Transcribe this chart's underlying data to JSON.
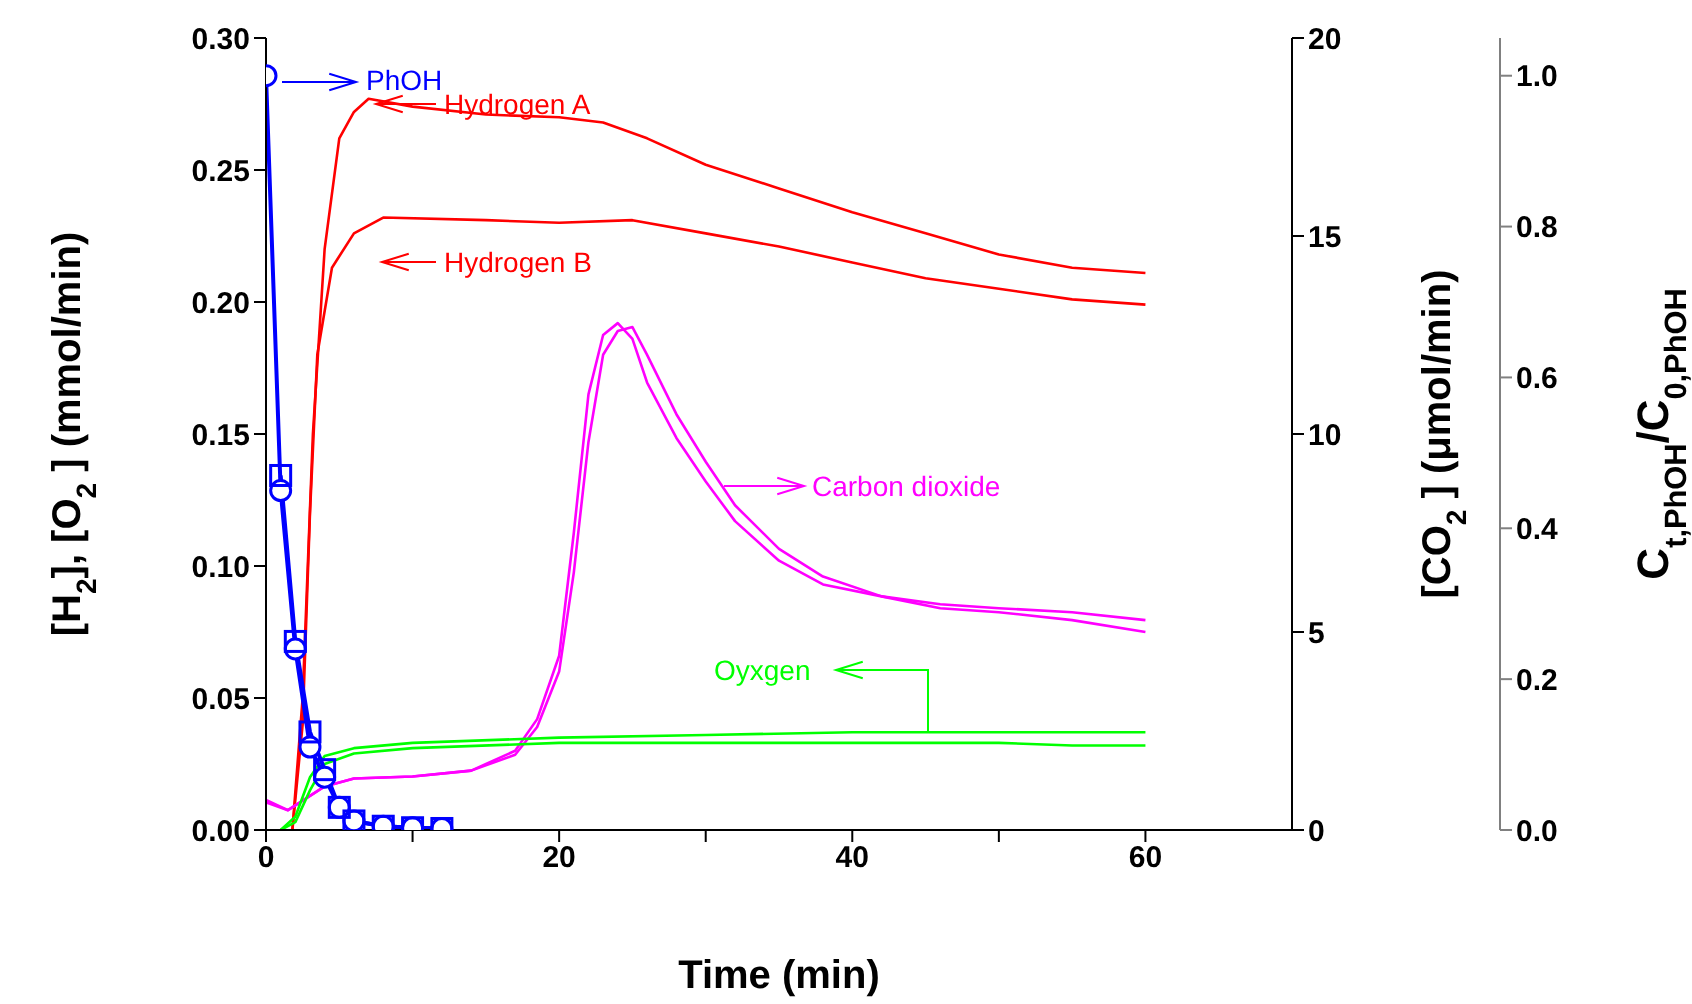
{
  "chart_data": {
    "type": "line",
    "xlabel": "Time (min)",
    "ylabel": "[H$_{2}$], [O$_{2}$ ] (mmol/min)",
    "y2label": "[CO$_{2}$ ] (μmol/min)",
    "y3label": "C$_{t,PhOH}$/C$_{0,PhOH}$",
    "xlim": [
      0,
      70
    ],
    "xticks": [
      0,
      {
        "value": 10,
        "label": null
      },
      20,
      {
        "value": 30,
        "label": null
      },
      40,
      {
        "value": 50,
        "label": null
      },
      60
    ],
    "ylim": [
      0,
      0.3
    ],
    "yticks": [
      {
        "value": 0,
        "label": "0.00"
      },
      {
        "value": 0.05,
        "label": "0.05"
      },
      {
        "value": 0.1,
        "label": "0.10"
      },
      {
        "value": 0.15,
        "label": "0.15"
      },
      {
        "value": 0.2,
        "label": "0.20"
      },
      {
        "value": 0.25,
        "label": "0.25"
      },
      {
        "value": 0.3,
        "label": "0.30"
      }
    ],
    "y2lim": [
      0,
      20
    ],
    "y2ticks": [
      0,
      5,
      10,
      15,
      20
    ],
    "y3lim": [
      0,
      1.05
    ],
    "y3ticks": [
      {
        "value": 0,
        "label": "0.0"
      },
      0.2,
      0.4,
      0.6,
      0.8,
      {
        "value": 1,
        "label": "1.0"
      }
    ],
    "grid": false,
    "legend": "top left",
    "series": [
      {
        "name": "Hydrogen A",
        "color": "#ff0000",
        "marker": "none",
        "x": [
          1.8,
          2.5,
          3.2,
          4,
          5,
          6,
          7,
          10,
          15,
          20,
          23,
          26,
          30,
          35,
          40,
          45,
          50,
          55,
          60
        ],
        "values": [
          0,
          0.05,
          0.15,
          0.22,
          0.262,
          0.272,
          0.277,
          0.274,
          0.271,
          0.27,
          0.268,
          0.262,
          0.252,
          0.243,
          0.234,
          0.226,
          0.218,
          0.213,
          0.211
        ]
      },
      {
        "name": "Hydrogen B",
        "color": "#ff0000",
        "marker": "none",
        "x": [
          1.8,
          2.5,
          3,
          3.5,
          4.5,
          6,
          8,
          15,
          20,
          25,
          30,
          35,
          40,
          45,
          50,
          55,
          60
        ],
        "values": [
          0,
          0.04,
          0.12,
          0.18,
          0.213,
          0.226,
          0.232,
          0.231,
          0.23,
          0.231,
          0.226,
          0.221,
          0.215,
          0.209,
          0.205,
          0.201,
          0.199
        ]
      },
      {
        "name": "Carbon dioxide",
        "color": "#ff00ff",
        "marker": "none",
        "axis": "y2",
        "x": [
          0,
          1.5,
          4,
          6,
          10,
          14,
          17,
          18.5,
          20,
          21,
          22,
          23,
          24,
          25,
          26,
          28,
          30,
          32,
          35,
          38,
          42,
          46,
          50,
          55,
          60
        ],
        "values": [
          0.76,
          0.5,
          1.1,
          1.3,
          1.35,
          1.5,
          2,
          2.8,
          4.4,
          7.5,
          11,
          12.5,
          12.8,
          12.4,
          11.3,
          9.9,
          8.8,
          7.8,
          6.8,
          6.2,
          5.9,
          5.6,
          5.5,
          5.3,
          5
        ]
      },
      {
        "color": "#ff00ff",
        "marker": "none",
        "axis": "y2",
        "x": [
          0,
          1.5,
          4,
          6,
          10,
          14,
          17,
          18.5,
          20,
          21,
          22,
          23,
          24,
          25,
          26,
          28,
          30,
          32,
          35,
          38,
          42,
          46,
          50,
          55,
          60
        ],
        "values": [
          0.7,
          0.5,
          1.1,
          1.3,
          1.35,
          1.5,
          1.9,
          2.6,
          4,
          6.5,
          9.8,
          12,
          12.6,
          12.7,
          12,
          10.5,
          9.3,
          8.2,
          7.1,
          6.4,
          5.9,
          5.7,
          5.6,
          5.5,
          5.3
        ]
      },
      {
        "name": "Oyxgen",
        "color": "#00ff00",
        "marker": "none",
        "x": [
          1,
          2,
          3,
          4,
          6,
          10,
          20,
          30,
          40,
          50,
          60
        ],
        "values": [
          0,
          0.005,
          0.02,
          0.028,
          0.031,
          0.033,
          0.035,
          0.036,
          0.037,
          0.037,
          0.037
        ]
      },
      {
        "color": "#00ff00",
        "marker": "none",
        "x": [
          1,
          2,
          3,
          4,
          6,
          10,
          20,
          30,
          40,
          50,
          55,
          60
        ],
        "values": [
          0,
          0.003,
          0.015,
          0.025,
          0.029,
          0.031,
          0.033,
          0.033,
          0.033,
          0.033,
          0.032,
          0.032
        ]
      },
      {
        "name": "PhOH",
        "color": "#0000ff",
        "marker": "circle",
        "axis": "y3",
        "x": [
          0,
          1,
          2,
          3,
          4,
          5,
          6,
          8,
          10,
          12
        ],
        "values": [
          1.0,
          0.45,
          0.24,
          0.11,
          0.07,
          0.03,
          0.012,
          0.005,
          0.003,
          0.002
        ]
      },
      {
        "color": "#0000ff",
        "marker": "square",
        "axis": "y3",
        "x": [
          1,
          2,
          3,
          4,
          5,
          6,
          8,
          10,
          12
        ],
        "values": [
          0.47,
          0.25,
          0.13,
          0.08,
          0.03,
          0.012,
          0.005,
          0.003,
          0.002
        ]
      }
    ]
  }
}
